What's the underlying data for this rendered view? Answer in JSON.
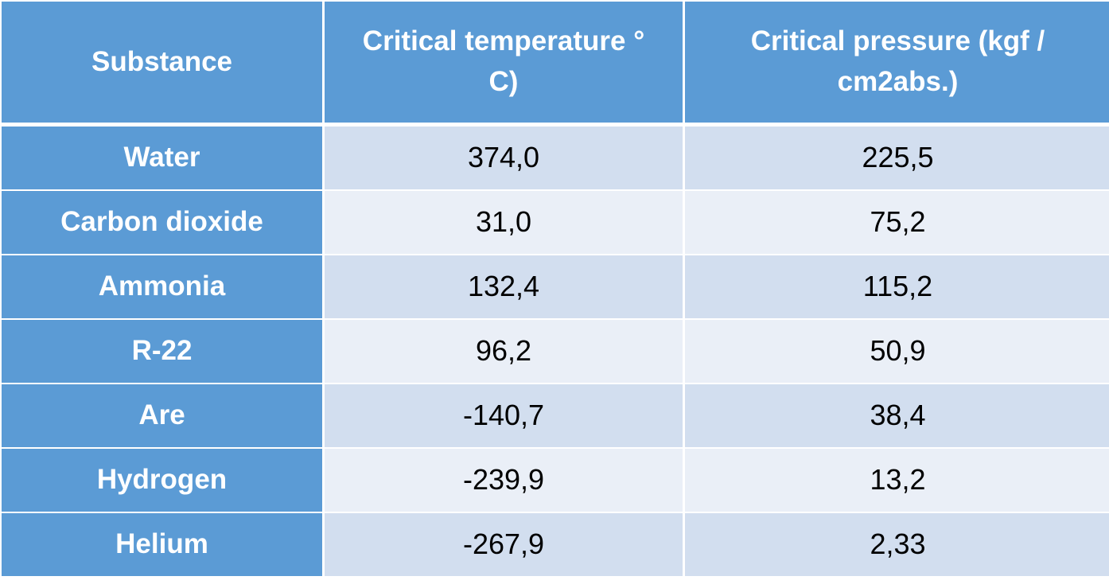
{
  "table": {
    "headers": [
      "Substance",
      "Critical temperature ° C)",
      "Critical pressure (kgf / cm2abs.)"
    ],
    "rows": [
      {
        "substance": "Water",
        "temperature": "374,0",
        "pressure": "225,5"
      },
      {
        "substance": "Carbon dioxide",
        "temperature": "31,0",
        "pressure": "75,2"
      },
      {
        "substance": "Ammonia",
        "temperature": "132,4",
        "pressure": "115,2"
      },
      {
        "substance": "R-22",
        "temperature": "96,2",
        "pressure": "50,9"
      },
      {
        "substance": "Are",
        "temperature": "-140,7",
        "pressure": "38,4"
      },
      {
        "substance": "Hydrogen",
        "temperature": "-239,9",
        "pressure": "13,2"
      },
      {
        "substance": "Helium",
        "temperature": "-267,9",
        "pressure": "2,33"
      }
    ]
  },
  "colors": {
    "header_blue": "#5b9bd5",
    "row_dark": "#d2deef",
    "row_light": "#eaeff7"
  }
}
